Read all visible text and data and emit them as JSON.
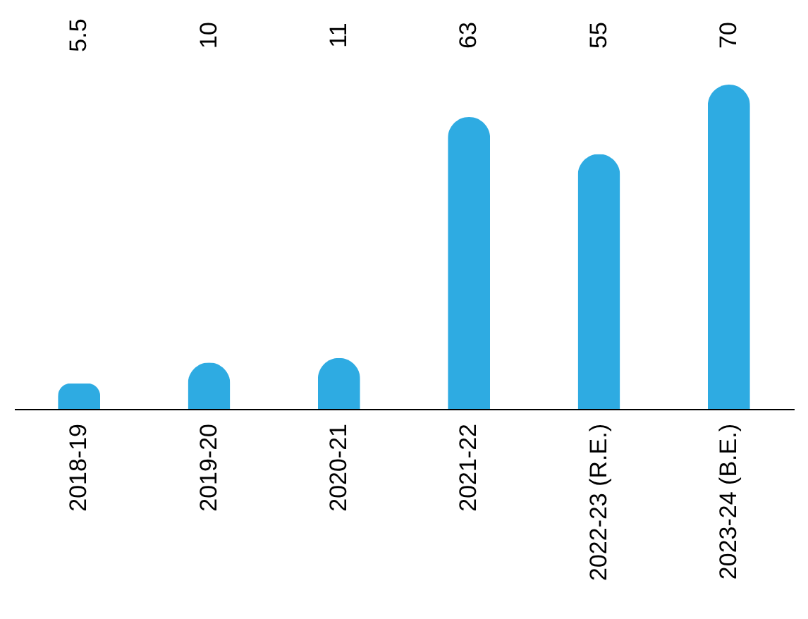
{
  "chart_data": {
    "type": "bar",
    "categories": [
      "2018-19",
      "2019-20",
      "2020-21",
      "2021-22",
      "2022-23 (R.E.)",
      "2023-24 (B.E.)"
    ],
    "values": [
      5.5,
      10,
      11,
      63,
      55,
      70
    ],
    "color": "#2eabe2",
    "data_labels": true
  }
}
